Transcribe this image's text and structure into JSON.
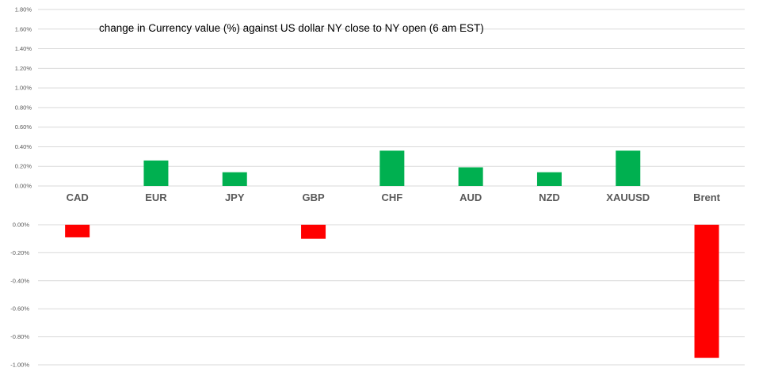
{
  "chart_data": [
    {
      "type": "bar",
      "title": "change in Currency value (%)  against US dollar NY  close to NY open (6 am EST)",
      "categories": [
        "CAD",
        "EUR",
        "JPY",
        "GBP",
        "CHF",
        "AUD",
        "NZD",
        "XAUUSD",
        "Brent"
      ],
      "values": [
        0.0,
        0.26,
        0.14,
        0.0,
        0.36,
        0.19,
        0.14,
        0.36,
        0.0
      ],
      "ylim": [
        0.0,
        1.8
      ],
      "yticks": [
        "1.80%",
        "1.60%",
        "1.40%",
        "1.20%",
        "1.00%",
        "0.80%",
        "0.60%",
        "0.40%",
        "0.20%",
        "0.00%"
      ],
      "bar_color": "#00b050",
      "grid": true
    },
    {
      "type": "bar",
      "categories": [
        "CAD",
        "EUR",
        "JPY",
        "GBP",
        "CHF",
        "AUD",
        "NZD",
        "XAUUSD",
        "Brent"
      ],
      "values": [
        -0.09,
        0.0,
        0.0,
        -0.1,
        0.0,
        0.0,
        0.0,
        0.0,
        -0.95
      ],
      "ylim": [
        -1.0,
        0.0
      ],
      "yticks": [
        "0.00%",
        "-0.20%",
        "-0.40%",
        "-0.60%",
        "-0.80%",
        "-1.00%"
      ],
      "bar_color": "#ff0000",
      "grid": true
    }
  ]
}
